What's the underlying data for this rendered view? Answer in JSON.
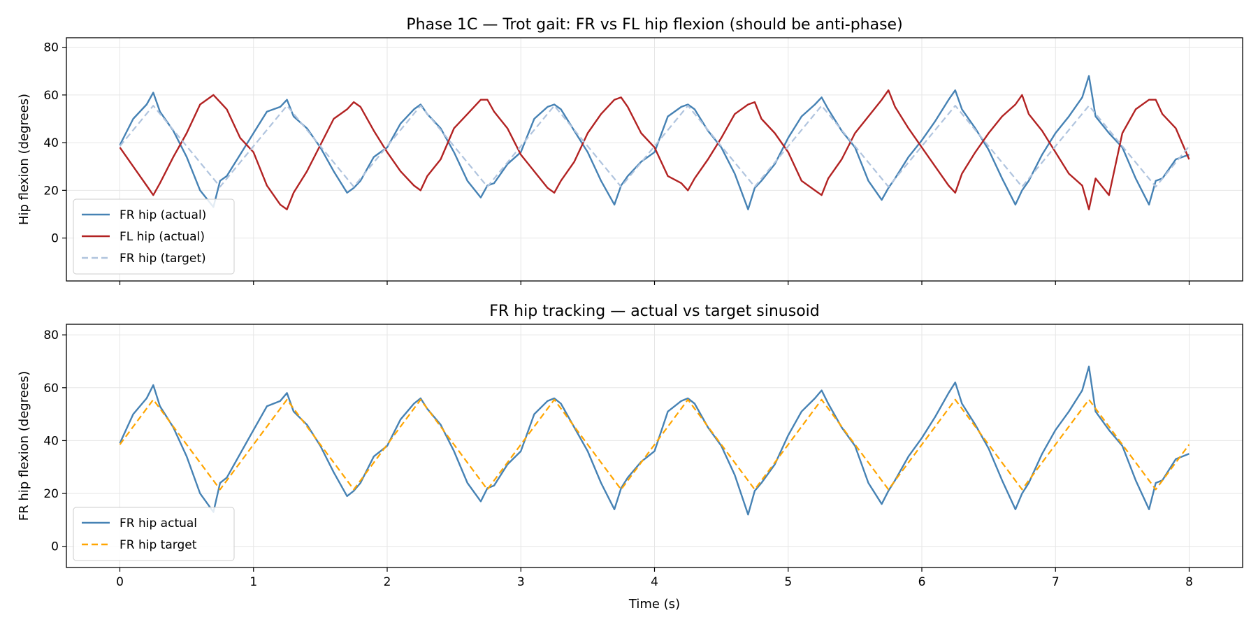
{
  "chart_data": [
    {
      "type": "line",
      "title": "Phase 1C — Trot gait: FR vs FL hip flexion (should be anti-phase)",
      "xlabel": "",
      "ylabel": "Hip flexion (degrees)",
      "xlim": [
        -0.4,
        8.4
      ],
      "ylim": [
        -18,
        84
      ],
      "xticks": [
        0,
        1,
        2,
        3,
        4,
        5,
        6,
        7,
        8
      ],
      "yticks": [
        0,
        20,
        40,
        60,
        80
      ],
      "grid": true,
      "legend_position": "lower-left",
      "series": [
        {
          "name": "FR hip (actual)",
          "color": "#4682b4",
          "style": "solid",
          "x": [
            0.0,
            0.1,
            0.2,
            0.25,
            0.3,
            0.4,
            0.5,
            0.6,
            0.7,
            0.75,
            0.8,
            0.9,
            1.0,
            1.1,
            1.2,
            1.25,
            1.3,
            1.4,
            1.5,
            1.6,
            1.7,
            1.75,
            1.8,
            1.9,
            2.0,
            2.1,
            2.2,
            2.25,
            2.3,
            2.4,
            2.5,
            2.6,
            2.7,
            2.75,
            2.8,
            2.9,
            3.0,
            3.1,
            3.2,
            3.25,
            3.3,
            3.4,
            3.5,
            3.6,
            3.7,
            3.75,
            3.8,
            3.9,
            4.0,
            4.1,
            4.2,
            4.25,
            4.3,
            4.4,
            4.5,
            4.6,
            4.7,
            4.75,
            4.8,
            4.9,
            5.0,
            5.1,
            5.2,
            5.25,
            5.3,
            5.4,
            5.5,
            5.6,
            5.7,
            5.75,
            5.8,
            5.9,
            6.0,
            6.1,
            6.2,
            6.25,
            6.3,
            6.4,
            6.5,
            6.6,
            6.7,
            6.75,
            6.8,
            6.9,
            7.0,
            7.1,
            7.2,
            7.25,
            7.3,
            7.4,
            7.5,
            7.6,
            7.7,
            7.75,
            7.8,
            7.9,
            8.0
          ],
          "y": [
            39,
            50,
            56,
            61,
            53,
            45,
            34,
            20,
            13,
            24,
            26,
            35,
            44,
            53,
            55,
            58,
            51,
            46,
            38,
            28,
            19,
            21,
            24,
            34,
            38,
            48,
            54,
            56,
            52,
            46,
            36,
            24,
            17,
            22,
            23,
            31,
            36,
            50,
            55,
            56,
            54,
            45,
            36,
            24,
            14,
            22,
            26,
            32,
            36,
            51,
            55,
            56,
            54,
            45,
            38,
            27,
            12,
            21,
            24,
            31,
            42,
            51,
            56,
            59,
            54,
            45,
            38,
            24,
            16,
            21,
            25,
            34,
            41,
            49,
            58,
            62,
            54,
            46,
            37,
            25,
            14,
            20,
            24,
            35,
            44,
            51,
            59,
            68,
            51,
            44,
            38,
            25,
            14,
            24,
            25,
            33,
            35
          ]
        },
        {
          "name": "FL hip (actual)",
          "color": "#b22222",
          "style": "solid",
          "x": [
            0.0,
            0.1,
            0.2,
            0.25,
            0.3,
            0.4,
            0.5,
            0.6,
            0.7,
            0.75,
            0.8,
            0.9,
            1.0,
            1.1,
            1.2,
            1.25,
            1.3,
            1.4,
            1.5,
            1.6,
            1.7,
            1.75,
            1.8,
            1.9,
            2.0,
            2.1,
            2.2,
            2.25,
            2.3,
            2.4,
            2.5,
            2.6,
            2.7,
            2.75,
            2.8,
            2.9,
            3.0,
            3.1,
            3.2,
            3.25,
            3.3,
            3.4,
            3.5,
            3.6,
            3.7,
            3.75,
            3.8,
            3.9,
            4.0,
            4.1,
            4.2,
            4.25,
            4.3,
            4.4,
            4.5,
            4.6,
            4.7,
            4.75,
            4.8,
            4.9,
            5.0,
            5.1,
            5.2,
            5.25,
            5.3,
            5.4,
            5.5,
            5.6,
            5.7,
            5.75,
            5.8,
            5.9,
            6.0,
            6.1,
            6.2,
            6.25,
            6.3,
            6.4,
            6.5,
            6.6,
            6.7,
            6.75,
            6.8,
            6.9,
            7.0,
            7.1,
            7.2,
            7.25,
            7.3,
            7.4,
            7.5,
            7.6,
            7.7,
            7.75,
            7.8,
            7.9,
            8.0
          ],
          "y": [
            38,
            30,
            22,
            18,
            23,
            34,
            44,
            56,
            60,
            57,
            54,
            42,
            36,
            22,
            14,
            12,
            19,
            28,
            39,
            50,
            54,
            57,
            55,
            45,
            36,
            28,
            22,
            20,
            26,
            33,
            46,
            52,
            58,
            58,
            53,
            46,
            35,
            28,
            21,
            19,
            24,
            32,
            44,
            52,
            58,
            59,
            55,
            44,
            38,
            26,
            23,
            20,
            25,
            33,
            42,
            52,
            56,
            57,
            50,
            44,
            36,
            24,
            20,
            18,
            25,
            33,
            44,
            51,
            58,
            62,
            55,
            46,
            38,
            30,
            22,
            19,
            27,
            36,
            44,
            51,
            56,
            60,
            52,
            45,
            36,
            27,
            22,
            12,
            25,
            18,
            44,
            54,
            58,
            58,
            52,
            46,
            33
          ]
        },
        {
          "name": "FR hip (target)",
          "color": "#b0c4de",
          "style": "dashed",
          "x": [
            0.0,
            0.25,
            0.5,
            0.75,
            1.0,
            1.25,
            1.5,
            1.75,
            2.0,
            2.25,
            2.5,
            2.75,
            3.0,
            3.25,
            3.5,
            3.75,
            4.0,
            4.25,
            4.5,
            4.75,
            5.0,
            5.25,
            5.5,
            5.75,
            6.0,
            6.25,
            6.5,
            6.75,
            7.0,
            7.25,
            7.5,
            7.75,
            8.0
          ],
          "y": [
            38.5,
            55.5,
            38.5,
            21.5,
            38.5,
            55.5,
            38.5,
            21.5,
            38.5,
            55.5,
            38.5,
            21.5,
            38.5,
            55.5,
            38.5,
            21.5,
            38.5,
            55.5,
            38.5,
            21.5,
            38.5,
            55.5,
            38.5,
            21.5,
            38.5,
            55.5,
            38.5,
            21.5,
            38.5,
            55.5,
            38.5,
            21.5,
            38.5
          ]
        }
      ]
    },
    {
      "type": "line",
      "title": "FR hip tracking — actual vs target sinusoid",
      "xlabel": "Time (s)",
      "ylabel": "FR hip flexion (degrees)",
      "xlim": [
        -0.4,
        8.4
      ],
      "ylim": [
        -8,
        84
      ],
      "xticks": [
        0,
        1,
        2,
        3,
        4,
        5,
        6,
        7,
        8
      ],
      "yticks": [
        0,
        20,
        40,
        60,
        80
      ],
      "grid": true,
      "legend_position": "lower-left",
      "series": [
        {
          "name": "FR hip actual",
          "color": "#4682b4",
          "style": "solid",
          "x": [
            0.0,
            0.1,
            0.2,
            0.25,
            0.3,
            0.4,
            0.5,
            0.6,
            0.7,
            0.75,
            0.8,
            0.9,
            1.0,
            1.1,
            1.2,
            1.25,
            1.3,
            1.4,
            1.5,
            1.6,
            1.7,
            1.75,
            1.8,
            1.9,
            2.0,
            2.1,
            2.2,
            2.25,
            2.3,
            2.4,
            2.5,
            2.6,
            2.7,
            2.75,
            2.8,
            2.9,
            3.0,
            3.1,
            3.2,
            3.25,
            3.3,
            3.4,
            3.5,
            3.6,
            3.7,
            3.75,
            3.8,
            3.9,
            4.0,
            4.1,
            4.2,
            4.25,
            4.3,
            4.4,
            4.5,
            4.6,
            4.7,
            4.75,
            4.8,
            4.9,
            5.0,
            5.1,
            5.2,
            5.25,
            5.3,
            5.4,
            5.5,
            5.6,
            5.7,
            5.75,
            5.8,
            5.9,
            6.0,
            6.1,
            6.2,
            6.25,
            6.3,
            6.4,
            6.5,
            6.6,
            6.7,
            6.75,
            6.8,
            6.9,
            7.0,
            7.1,
            7.2,
            7.25,
            7.3,
            7.4,
            7.5,
            7.6,
            7.7,
            7.75,
            7.8,
            7.9,
            8.0
          ],
          "y": [
            39,
            50,
            56,
            61,
            53,
            45,
            34,
            20,
            13,
            24,
            26,
            35,
            44,
            53,
            55,
            58,
            51,
            46,
            38,
            28,
            19,
            21,
            24,
            34,
            38,
            48,
            54,
            56,
            52,
            46,
            36,
            24,
            17,
            22,
            23,
            31,
            36,
            50,
            55,
            56,
            54,
            45,
            36,
            24,
            14,
            22,
            26,
            32,
            36,
            51,
            55,
            56,
            54,
            45,
            38,
            27,
            12,
            21,
            24,
            31,
            42,
            51,
            56,
            59,
            54,
            45,
            38,
            24,
            16,
            21,
            25,
            34,
            41,
            49,
            58,
            62,
            54,
            46,
            37,
            25,
            14,
            20,
            24,
            35,
            44,
            51,
            59,
            68,
            51,
            44,
            38,
            25,
            14,
            24,
            25,
            33,
            35
          ]
        },
        {
          "name": "FR hip target",
          "color": "#ffa500",
          "style": "dashed",
          "x": [
            0.0,
            0.25,
            0.5,
            0.75,
            1.0,
            1.25,
            1.5,
            1.75,
            2.0,
            2.25,
            2.5,
            2.75,
            3.0,
            3.25,
            3.5,
            3.75,
            4.0,
            4.25,
            4.5,
            4.75,
            5.0,
            5.25,
            5.5,
            5.75,
            6.0,
            6.25,
            6.5,
            6.75,
            7.0,
            7.25,
            7.5,
            7.75,
            8.0
          ],
          "y": [
            38.5,
            55.5,
            38.5,
            21.5,
            38.5,
            55.5,
            38.5,
            21.5,
            38.5,
            55.5,
            38.5,
            21.5,
            38.5,
            55.5,
            38.5,
            21.5,
            38.5,
            55.5,
            38.5,
            21.5,
            38.5,
            55.5,
            38.5,
            21.5,
            38.5,
            55.5,
            38.5,
            21.5,
            38.5,
            55.5,
            38.5,
            21.5,
            38.5
          ]
        }
      ]
    }
  ]
}
